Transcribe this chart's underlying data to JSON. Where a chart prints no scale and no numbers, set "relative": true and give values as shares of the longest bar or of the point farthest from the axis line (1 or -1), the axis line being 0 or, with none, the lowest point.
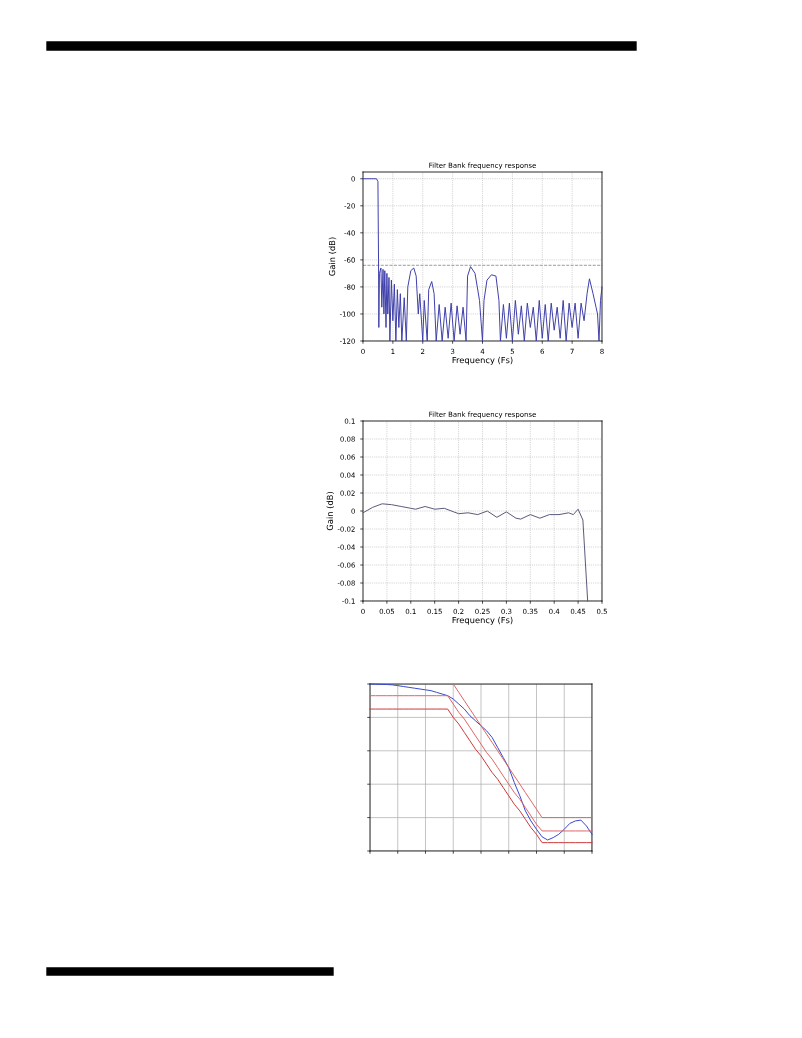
{
  "chart_data": [
    {
      "type": "line",
      "title": "Filter Bank frequency response",
      "xlabel": "Frequency (Fs)",
      "ylabel": "Gain (dB)",
      "grid": true,
      "xlim": [
        0,
        8
      ],
      "ylim": [
        -120,
        5
      ],
      "xticks": [
        0,
        1,
        2,
        3,
        4,
        5,
        6,
        7,
        8
      ],
      "yticks": [
        0,
        -20,
        -40,
        -60,
        -80,
        -100,
        -120
      ],
      "x": [
        0,
        0.45,
        0.5,
        0.52,
        0.53,
        0.55,
        0.6,
        0.63,
        0.67,
        0.7,
        0.73,
        0.77,
        0.8,
        0.83,
        0.87,
        0.9,
        0.95,
        1.0,
        1.05,
        1.1,
        1.15,
        1.2,
        1.25,
        1.3,
        1.38,
        1.45,
        1.5,
        1.6,
        1.7,
        1.78,
        1.85,
        1.9,
        2.0,
        2.05,
        2.15,
        2.2,
        2.3,
        2.38,
        2.45,
        2.55,
        2.65,
        2.75,
        2.85,
        2.95,
        3.05,
        3.15,
        3.25,
        3.35,
        3.45,
        3.5,
        3.6,
        3.75,
        3.9,
        4.0,
        4.05,
        4.15,
        4.3,
        4.45,
        4.55,
        4.6,
        4.7,
        4.8,
        4.9,
        5.0,
        5.1,
        5.2,
        5.3,
        5.4,
        5.5,
        5.6,
        5.7,
        5.8,
        5.9,
        6.0,
        6.1,
        6.2,
        6.3,
        6.4,
        6.5,
        6.6,
        6.7,
        6.8,
        6.9,
        7.0,
        7.1,
        7.2,
        7.3,
        7.4,
        7.5,
        7.58,
        7.7,
        7.8,
        7.85,
        7.9,
        7.95,
        8.0
      ],
      "series": [
        {
          "color": "#3a3aa8",
          "values": [
            0,
            0,
            -2,
            -60,
            -110,
            -70,
            -66,
            -95,
            -67,
            -100,
            -68,
            -110,
            -70,
            -100,
            -73,
            -120,
            -75,
            -105,
            -78,
            -120,
            -82,
            -110,
            -85,
            -120,
            -88,
            -120,
            -80,
            -68,
            -66,
            -72,
            -100,
            -85,
            -120,
            -90,
            -120,
            -82,
            -76,
            -85,
            -120,
            -93,
            -120,
            -95,
            -118,
            -92,
            -120,
            -94,
            -115,
            -95,
            -120,
            -72,
            -65,
            -70,
            -90,
            -120,
            -90,
            -75,
            -71,
            -72,
            -90,
            -120,
            -93,
            -118,
            -92,
            -120,
            -90,
            -115,
            -94,
            -120,
            -92,
            -110,
            -95,
            -120,
            -90,
            -118,
            -93,
            -120,
            -92,
            -112,
            -95,
            -118,
            -90,
            -120,
            -92,
            -110,
            -92,
            -118,
            -92,
            -105,
            -85,
            -74,
            -85,
            -95,
            -100,
            -120,
            -90,
            -80
          ]
        }
      ],
      "ref_lines": [
        {
          "axis": "y",
          "value": -64,
          "color": "#888888",
          "line_style": "dashed"
        }
      ]
    },
    {
      "type": "line",
      "title": "Filter Bank frequency response",
      "xlabel": "Frequency (Fs)",
      "ylabel": "Gain (dB)",
      "grid": true,
      "xlim": [
        0,
        0.5
      ],
      "ylim": [
        -0.1,
        0.1
      ],
      "xticks": [
        0,
        0.05,
        0.1,
        0.15,
        0.2,
        0.25,
        0.3,
        0.35,
        0.4,
        0.45,
        0.5
      ],
      "yticks": [
        0.1,
        0.08,
        0.06,
        0.04,
        0.02,
        0,
        -0.02,
        -0.04,
        -0.06,
        -0.08,
        -0.1
      ],
      "x": [
        0,
        0.02,
        0.04,
        0.06,
        0.08,
        0.1,
        0.11,
        0.13,
        0.15,
        0.17,
        0.19,
        0.2,
        0.22,
        0.24,
        0.26,
        0.28,
        0.3,
        0.32,
        0.33,
        0.35,
        0.37,
        0.39,
        0.41,
        0.43,
        0.44,
        0.45,
        0.46,
        0.47
      ],
      "series": [
        {
          "color": "#555577",
          "values": [
            -0.002,
            0.004,
            0.008,
            0.007,
            0.005,
            0.003,
            0.002,
            0.005,
            0.002,
            0.003,
            -0.001,
            -0.003,
            -0.002,
            -0.004,
            0.0,
            -0.007,
            -0.001,
            -0.008,
            -0.009,
            -0.004,
            -0.008,
            -0.004,
            -0.004,
            -0.002,
            -0.004,
            0.002,
            -0.01,
            -0.1
          ]
        }
      ]
    },
    {
      "type": "line",
      "relative": true,
      "tick_labels": false,
      "grid": true,
      "categories": [
        null,
        null,
        null,
        null,
        null,
        null,
        null,
        null,
        null,
        null,
        null,
        null,
        null,
        null,
        null,
        null,
        null,
        null,
        null,
        null,
        null,
        null,
        null,
        null,
        null,
        null,
        null,
        null,
        null,
        null,
        null,
        null,
        null,
        null,
        null,
        null,
        null,
        null,
        null,
        null,
        null
      ],
      "series": [
        {
          "color": "#3344cc",
          "values": [
            1.0,
            0.999,
            0.998,
            0.997,
            0.995,
            0.99,
            0.985,
            0.98,
            0.975,
            0.97,
            0.965,
            0.96,
            0.95,
            0.94,
            0.93,
            0.91,
            0.88,
            0.85,
            0.81,
            0.78,
            0.75,
            0.72,
            0.68,
            0.62,
            0.56,
            0.5,
            0.41,
            0.33,
            0.24,
            0.18,
            0.13,
            0.085,
            0.066,
            0.08,
            0.1,
            0.13,
            0.165,
            0.18,
            0.185,
            0.15,
            0.1
          ]
        },
        {
          "color": "#e06060",
          "values": [
            null,
            null,
            null,
            null,
            null,
            null,
            null,
            null,
            null,
            null,
            null,
            null,
            null,
            null,
            null,
            1.0,
            0.95,
            0.9,
            0.85,
            0.8,
            0.75,
            0.7,
            0.65,
            0.6,
            0.55,
            0.5,
            0.45,
            0.4,
            0.35,
            0.3,
            0.25,
            0.2,
            0.2,
            0.2,
            0.2,
            0.2,
            0.2,
            0.2,
            0.2,
            0.2,
            0.2
          ]
        },
        {
          "color": "#e06060",
          "values": [
            0.93,
            0.93,
            0.93,
            0.93,
            0.93,
            0.93,
            0.93,
            0.93,
            0.93,
            0.93,
            0.93,
            0.93,
            0.93,
            0.93,
            0.93,
            0.88,
            0.83,
            0.79,
            0.74,
            0.69,
            0.64,
            0.59,
            0.55,
            0.5,
            0.45,
            0.4,
            0.35,
            0.31,
            0.26,
            0.21,
            0.16,
            0.12,
            0.12,
            0.12,
            0.12,
            0.12,
            0.12,
            0.12,
            0.12,
            0.12,
            0.12
          ]
        },
        {
          "color": "#cc3333",
          "values": [
            0.85,
            0.85,
            0.85,
            0.85,
            0.85,
            0.85,
            0.85,
            0.85,
            0.85,
            0.85,
            0.85,
            0.85,
            0.85,
            0.85,
            0.85,
            0.8,
            0.76,
            0.71,
            0.66,
            0.61,
            0.57,
            0.52,
            0.47,
            0.43,
            0.38,
            0.33,
            0.28,
            0.24,
            0.19,
            0.14,
            0.1,
            0.05,
            0.05,
            0.05,
            0.05,
            0.05,
            0.05,
            0.05,
            0.05,
            0.05,
            0.05
          ]
        }
      ]
    }
  ]
}
